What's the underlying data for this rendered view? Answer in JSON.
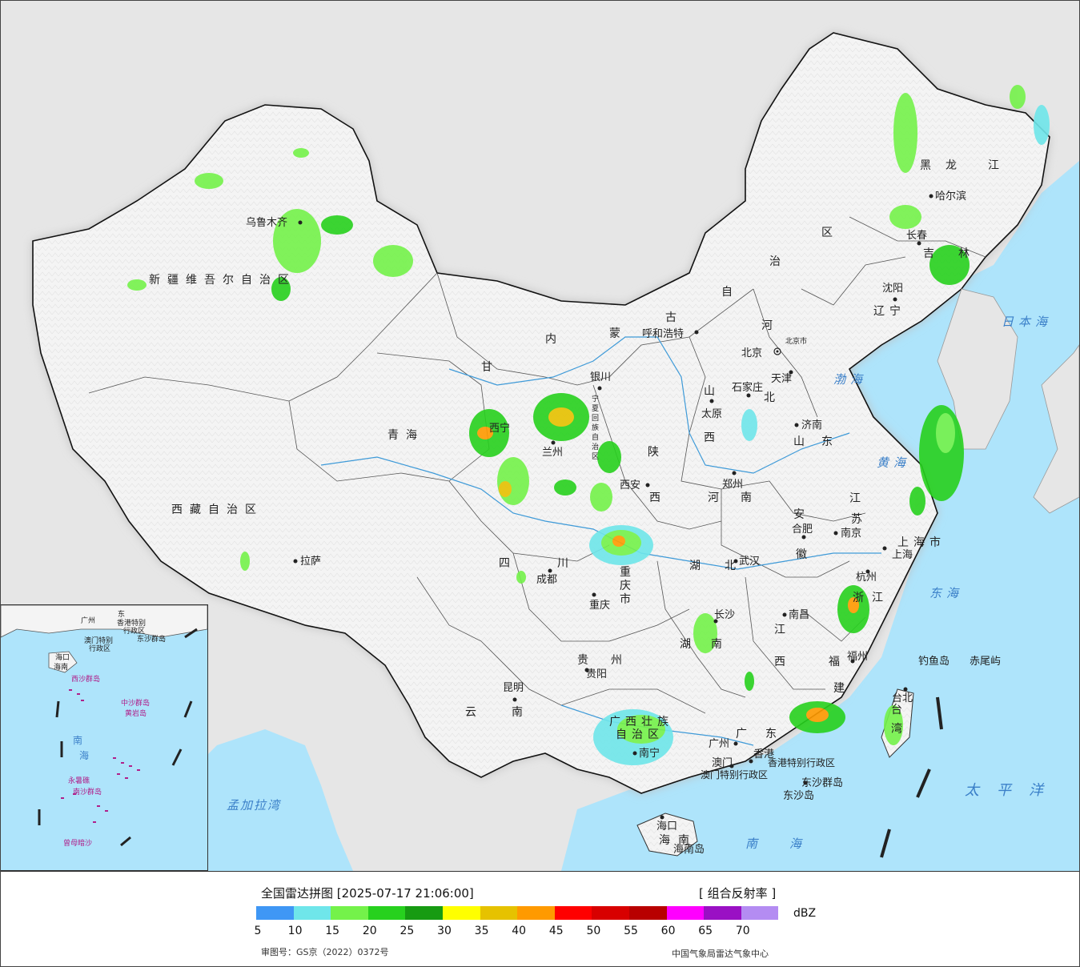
{
  "legend": {
    "title": "全国雷达拼图 [2025-07-17 21:06:00]",
    "product": "[ 组合反射率 ]",
    "unit": "dBZ",
    "colors": [
      "#3f97f5",
      "#6fe6ea",
      "#74f24a",
      "#27d11e",
      "#179b12",
      "#ffff00",
      "#e6c200",
      "#ff9a00",
      "#ff0000",
      "#d80000",
      "#b80000",
      "#ff00ff",
      "#9a10c4",
      "#b48cf2"
    ],
    "ticks": [
      "5",
      "10",
      "15",
      "20",
      "25",
      "30",
      "35",
      "40",
      "45",
      "50",
      "55",
      "60",
      "65",
      "70"
    ],
    "approval": "审图号：GS京（2022）0372号",
    "org": "中国气象局雷达气象中心"
  },
  "regions": [
    "新疆维吾尔自治区",
    "西藏自治区",
    "青海",
    "甘",
    "内",
    "蒙",
    "古",
    "自",
    "治",
    "区",
    "黑",
    "龙",
    "江",
    "吉",
    "林",
    "辽",
    "宁",
    "河",
    "北",
    "山",
    "东",
    "山",
    "西",
    "陕",
    "西",
    "河",
    "南",
    "湖",
    "北",
    "湖",
    "南",
    "江",
    "西",
    "安",
    "徽",
    "江",
    "苏",
    "浙",
    "江",
    "福",
    "建",
    "四",
    "川",
    "重",
    "庆",
    "市",
    "贵",
    "州",
    "云",
    "南",
    "广",
    "西",
    "壮",
    "族",
    "自",
    "治",
    "区",
    "广",
    "东",
    "海",
    "南",
    "台",
    "湾",
    "上",
    "海",
    "市",
    "宁",
    "夏",
    "回",
    "族",
    "自",
    "治",
    "区"
  ],
  "cities": [
    "乌鲁木齐",
    "拉萨",
    "西宁",
    "兰州",
    "银川",
    "呼和浩特",
    "北京",
    "北京市",
    "天津",
    "石家庄",
    "太原",
    "济南",
    "郑州",
    "西安",
    "沈阳",
    "长春",
    "哈尔滨",
    "南京",
    "合肥",
    "上海",
    "杭州",
    "武汉",
    "长沙",
    "南昌",
    "福州",
    "成都",
    "重庆",
    "贵阳",
    "昆明",
    "南宁",
    "广州",
    "澳门",
    "香港",
    "海口",
    "台北",
    "钓鱼岛",
    "赤尾屿",
    "东沙群岛",
    "东沙岛",
    "海南岛"
  ],
  "special_regions": [
    "香港特别行政区",
    "澳门特别行政区"
  ],
  "seas": [
    "日本海",
    "渤海",
    "黄海",
    "东海",
    "南海",
    "太平洋",
    "孟加拉湾"
  ],
  "inset": {
    "labels": [
      "广州",
      "东",
      "香港特别",
      "行政区",
      "澳门特别",
      "行政区",
      "东沙群岛",
      "海口",
      "海南",
      "西沙群岛",
      "中沙群岛",
      "黄岩岛",
      "南",
      "海",
      "永暑礁",
      "南沙群岛",
      "曾母暗沙"
    ]
  }
}
